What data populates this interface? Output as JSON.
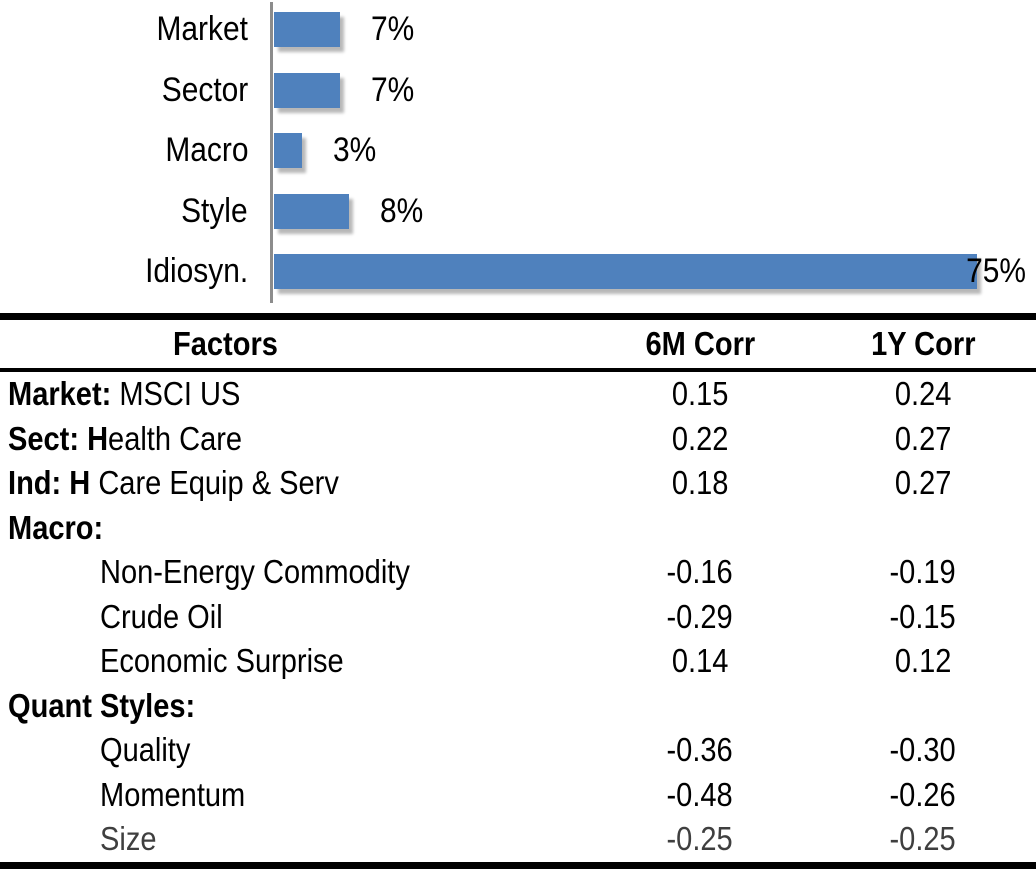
{
  "chart_data": {
    "type": "bar",
    "orientation": "horizontal",
    "title": "",
    "categories": [
      "Market",
      "Sector",
      "Macro",
      "Style",
      "Idiosyn."
    ],
    "values": [
      7,
      7,
      3,
      8,
      75
    ],
    "value_labels": [
      "7%",
      "7%",
      "3%",
      "8%",
      "75%"
    ],
    "unit": "%",
    "xlim": [
      0,
      78
    ],
    "grid": false,
    "legend": false,
    "value_label_position": "outside-end",
    "bar_color": "#4f81bd",
    "axis_line_color": "#8c8c8c",
    "label_color": "#000000"
  },
  "table": {
    "columns": [
      "Factors",
      "6M Corr",
      "1Y Corr"
    ],
    "rows": [
      {
        "label_bold": "Market:",
        "label_rest": " MSCI US",
        "indent": false,
        "corr_6m": "0.15",
        "corr_1y": "0.24",
        "muted": false
      },
      {
        "label_bold": "Sect: H",
        "label_rest": "ealth Care",
        "indent": false,
        "corr_6m": "0.22",
        "corr_1y": "0.27",
        "muted": false
      },
      {
        "label_bold": "Ind: H",
        "label_rest": " Care Equip & Serv",
        "indent": false,
        "corr_6m": "0.18",
        "corr_1y": "0.27",
        "muted": false
      },
      {
        "label_bold": "Macro:",
        "label_rest": "",
        "indent": false,
        "corr_6m": "",
        "corr_1y": "",
        "muted": false
      },
      {
        "label_bold": "",
        "label_rest": "Non-Energy Commodity",
        "indent": true,
        "corr_6m": "-0.16",
        "corr_1y": "-0.19",
        "muted": false
      },
      {
        "label_bold": "",
        "label_rest": "Crude Oil",
        "indent": true,
        "corr_6m": "-0.29",
        "corr_1y": "-0.15",
        "muted": false
      },
      {
        "label_bold": "",
        "label_rest": "Economic Surprise",
        "indent": true,
        "corr_6m": "0.14",
        "corr_1y": "0.12",
        "muted": false
      },
      {
        "label_bold": "Quant Styles:",
        "label_rest": "",
        "indent": false,
        "corr_6m": "",
        "corr_1y": "",
        "muted": false
      },
      {
        "label_bold": "",
        "label_rest": "Quality",
        "indent": true,
        "corr_6m": "-0.36",
        "corr_1y": "-0.30",
        "muted": false
      },
      {
        "label_bold": "",
        "label_rest": "Momentum",
        "indent": true,
        "corr_6m": "-0.48",
        "corr_1y": "-0.26",
        "muted": false
      },
      {
        "label_bold": "",
        "label_rest": "Size",
        "indent": true,
        "corr_6m": "-0.25",
        "corr_1y": "-0.25",
        "muted": true
      }
    ],
    "border_color": "#000000",
    "text_color": "#000000",
    "muted_text_color": "#3f3f3f"
  }
}
